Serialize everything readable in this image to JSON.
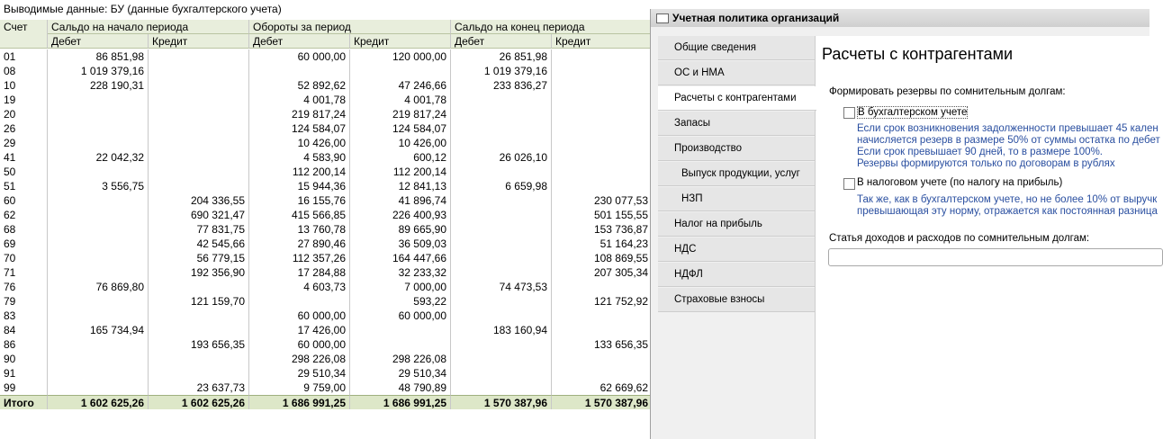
{
  "report": {
    "output_label": "Выводимые данные:  БУ (данные бухгалтерского учета)",
    "header": {
      "account": "Счет",
      "groups": [
        "Сальдо на начало периода",
        "Обороты за период",
        "Сальдо на конец периода"
      ],
      "subcolumns": [
        "Дебет",
        "Кредит",
        "Дебет",
        "Кредит",
        "Дебет",
        "Кредит"
      ]
    },
    "rows": [
      [
        "01",
        "86 851,98",
        null,
        "60 000,00",
        "120 000,00",
        "26 851,98",
        null
      ],
      [
        "08",
        "1 019 379,16",
        null,
        null,
        null,
        "1 019 379,16",
        null
      ],
      [
        "10",
        "228 190,31",
        null,
        "52 892,62",
        "47 246,66",
        "233 836,27",
        null
      ],
      [
        "19",
        null,
        null,
        "4 001,78",
        "4 001,78",
        null,
        null
      ],
      [
        "20",
        null,
        null,
        "219 817,24",
        "219 817,24",
        null,
        null
      ],
      [
        "26",
        null,
        null,
        "124 584,07",
        "124 584,07",
        null,
        null
      ],
      [
        "29",
        null,
        null,
        "10 426,00",
        "10 426,00",
        null,
        null
      ],
      [
        "41",
        "22 042,32",
        null,
        "4 583,90",
        "600,12",
        "26 026,10",
        null
      ],
      [
        "50",
        null,
        null,
        "112 200,14",
        "112 200,14",
        null,
        null
      ],
      [
        "51",
        "3 556,75",
        null,
        "15 944,36",
        "12 841,13",
        "6 659,98",
        null
      ],
      [
        "60",
        null,
        "204 336,55",
        "16 155,76",
        "41 896,74",
        null,
        "230 077,53"
      ],
      [
        "62",
        null,
        "690 321,47",
        "415 566,85",
        "226 400,93",
        null,
        "501 155,55"
      ],
      [
        "68",
        null,
        "77 831,75",
        "13 760,78",
        "89 665,90",
        null,
        "153 736,87"
      ],
      [
        "69",
        null,
        "42 545,66",
        "27 890,46",
        "36 509,03",
        null,
        "51 164,23"
      ],
      [
        "70",
        null,
        "56 779,15",
        "112 357,26",
        "164 447,66",
        null,
        "108 869,55"
      ],
      [
        "71",
        null,
        "192 356,90",
        "17 284,88",
        "32 233,32",
        null,
        "207 305,34"
      ],
      [
        "76",
        "76 869,80",
        null,
        "4 603,73",
        "7 000,00",
        "74 473,53",
        null
      ],
      [
        "79",
        null,
        "121 159,70",
        null,
        "593,22",
        null,
        "121 752,92"
      ],
      [
        "83",
        null,
        null,
        "60 000,00",
        "60 000,00",
        null,
        null
      ],
      [
        "84",
        "165 734,94",
        null,
        "17 426,00",
        null,
        "183 160,94",
        null
      ],
      [
        "86",
        null,
        "193 656,35",
        "60 000,00",
        null,
        null,
        "133 656,35"
      ],
      [
        "90",
        null,
        null,
        "298 226,08",
        "298 226,08",
        null,
        null
      ],
      [
        "91",
        null,
        null,
        "29 510,34",
        "29 510,34",
        null,
        null
      ],
      [
        "99",
        null,
        "23 637,73",
        "9 759,00",
        "48 790,89",
        null,
        "62 669,62"
      ]
    ],
    "total": [
      "Итого",
      "1 602 625,26",
      "1 602 625,26",
      "1 686 991,25",
      "1 686 991,25",
      "1 570 387,96",
      "1 570 387,96"
    ]
  },
  "dialog": {
    "title": "Учетная политика организаций",
    "nav": [
      "Общие сведения",
      "ОС и НМА",
      "Расчеты с контрагентами",
      "Запасы",
      "Производство",
      "Выпуск продукции, услуг",
      "НЗП",
      "Налог на прибыль",
      "НДС",
      "НДФЛ",
      "Страховые взносы"
    ],
    "heading": "Расчеты с контрагентами",
    "reserves_label": "Формировать резервы по сомнительным долгам:",
    "accounting_checkbox": "В бухгалтерском учете",
    "accounting_notes": [
      "Если срок возникновения задолженности превышает 45 кален",
      "начисляется резерв в размере 50% от суммы остатка по дебет",
      "Если срок превышает 90 дней, то в размере 100%.",
      "Резервы формируются только по договорам в рублях"
    ],
    "tax_checkbox": "В налоговом учете (по налогу на прибыль)",
    "tax_notes": [
      "Так же, как в бухгалтерском учете, но не более 10% от выручк",
      "превышающая эту норму, отражается как постоянная разница"
    ],
    "item_label": "Статья доходов и расходов по сомнительным долгам:"
  }
}
